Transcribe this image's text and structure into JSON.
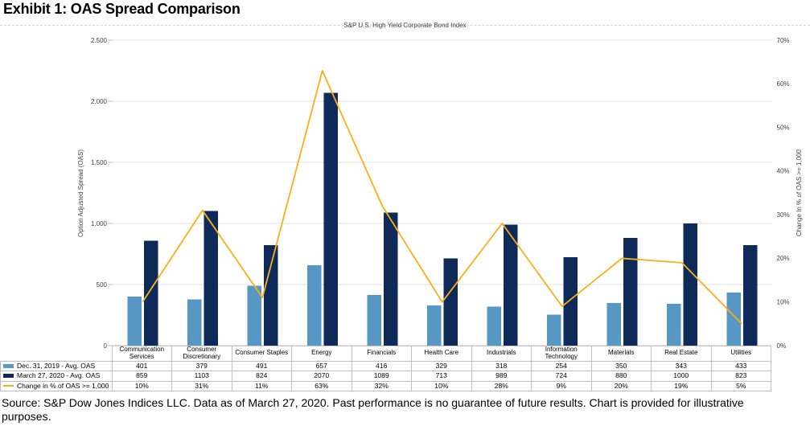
{
  "page": {
    "title": "Exhibit 1: OAS Spread Comparison",
    "source": "Source: S&P Dow Jones Indices LLC. Data as of March 27, 2020. Past performance is no guarantee of future results. Chart is provided for illustrative purposes."
  },
  "chart_data": {
    "type": "bar-line-combo",
    "title": "S&P U.S. High Yield Corporate Bond Index",
    "categories": [
      "Communication Services",
      "Consumer Discretionary",
      "Consumer Staples",
      "Energy",
      "Financials",
      "Health Care",
      "Industrials",
      "Information Technology",
      "Materials",
      "Real Estate",
      "Utilities"
    ],
    "series": [
      {
        "name": "Dec. 31, 2019 - Avg. OAS",
        "type": "bar",
        "axis": "left",
        "color": "#5697C4",
        "values": [
          401,
          379,
          491,
          657,
          416,
          329,
          318,
          254,
          350,
          343,
          433
        ]
      },
      {
        "name": "March 27, 2020 - Avg. OAS",
        "type": "bar",
        "axis": "left",
        "color": "#0E2A58",
        "values": [
          859,
          1103,
          824,
          2070,
          1089,
          713,
          989,
          724,
          880,
          1000,
          823
        ]
      },
      {
        "name": "Change in % of OAS >= 1,000",
        "type": "line",
        "axis": "right",
        "color": "#FBAF17",
        "values": [
          10,
          31,
          11,
          63,
          32,
          10,
          28,
          9,
          20,
          19,
          5
        ],
        "display": [
          "10%",
          "31%",
          "11%",
          "63%",
          "32%",
          "10%",
          "28%",
          "9%",
          "20%",
          "19%",
          "5%"
        ]
      }
    ],
    "left_axis": {
      "label": "Option Adjusted Spread (OAS)",
      "min": 0,
      "max": 2500,
      "tick_values": [
        0,
        500,
        1000,
        1500,
        2000,
        2500
      ],
      "tick_labels": [
        "0",
        "500",
        "1.000",
        "1.500",
        "2.000",
        "2.500"
      ]
    },
    "right_axis": {
      "label": "Change In % of OAS >= 1,000",
      "min": 0,
      "max": 70,
      "tick_values": [
        0,
        10,
        20,
        30,
        40,
        50,
        60,
        70
      ],
      "tick_labels": [
        "0%",
        "10%",
        "20%",
        "30%",
        "40%",
        "50%",
        "60%",
        "70%"
      ]
    },
    "grid": true,
    "legend_position": "table-left"
  }
}
